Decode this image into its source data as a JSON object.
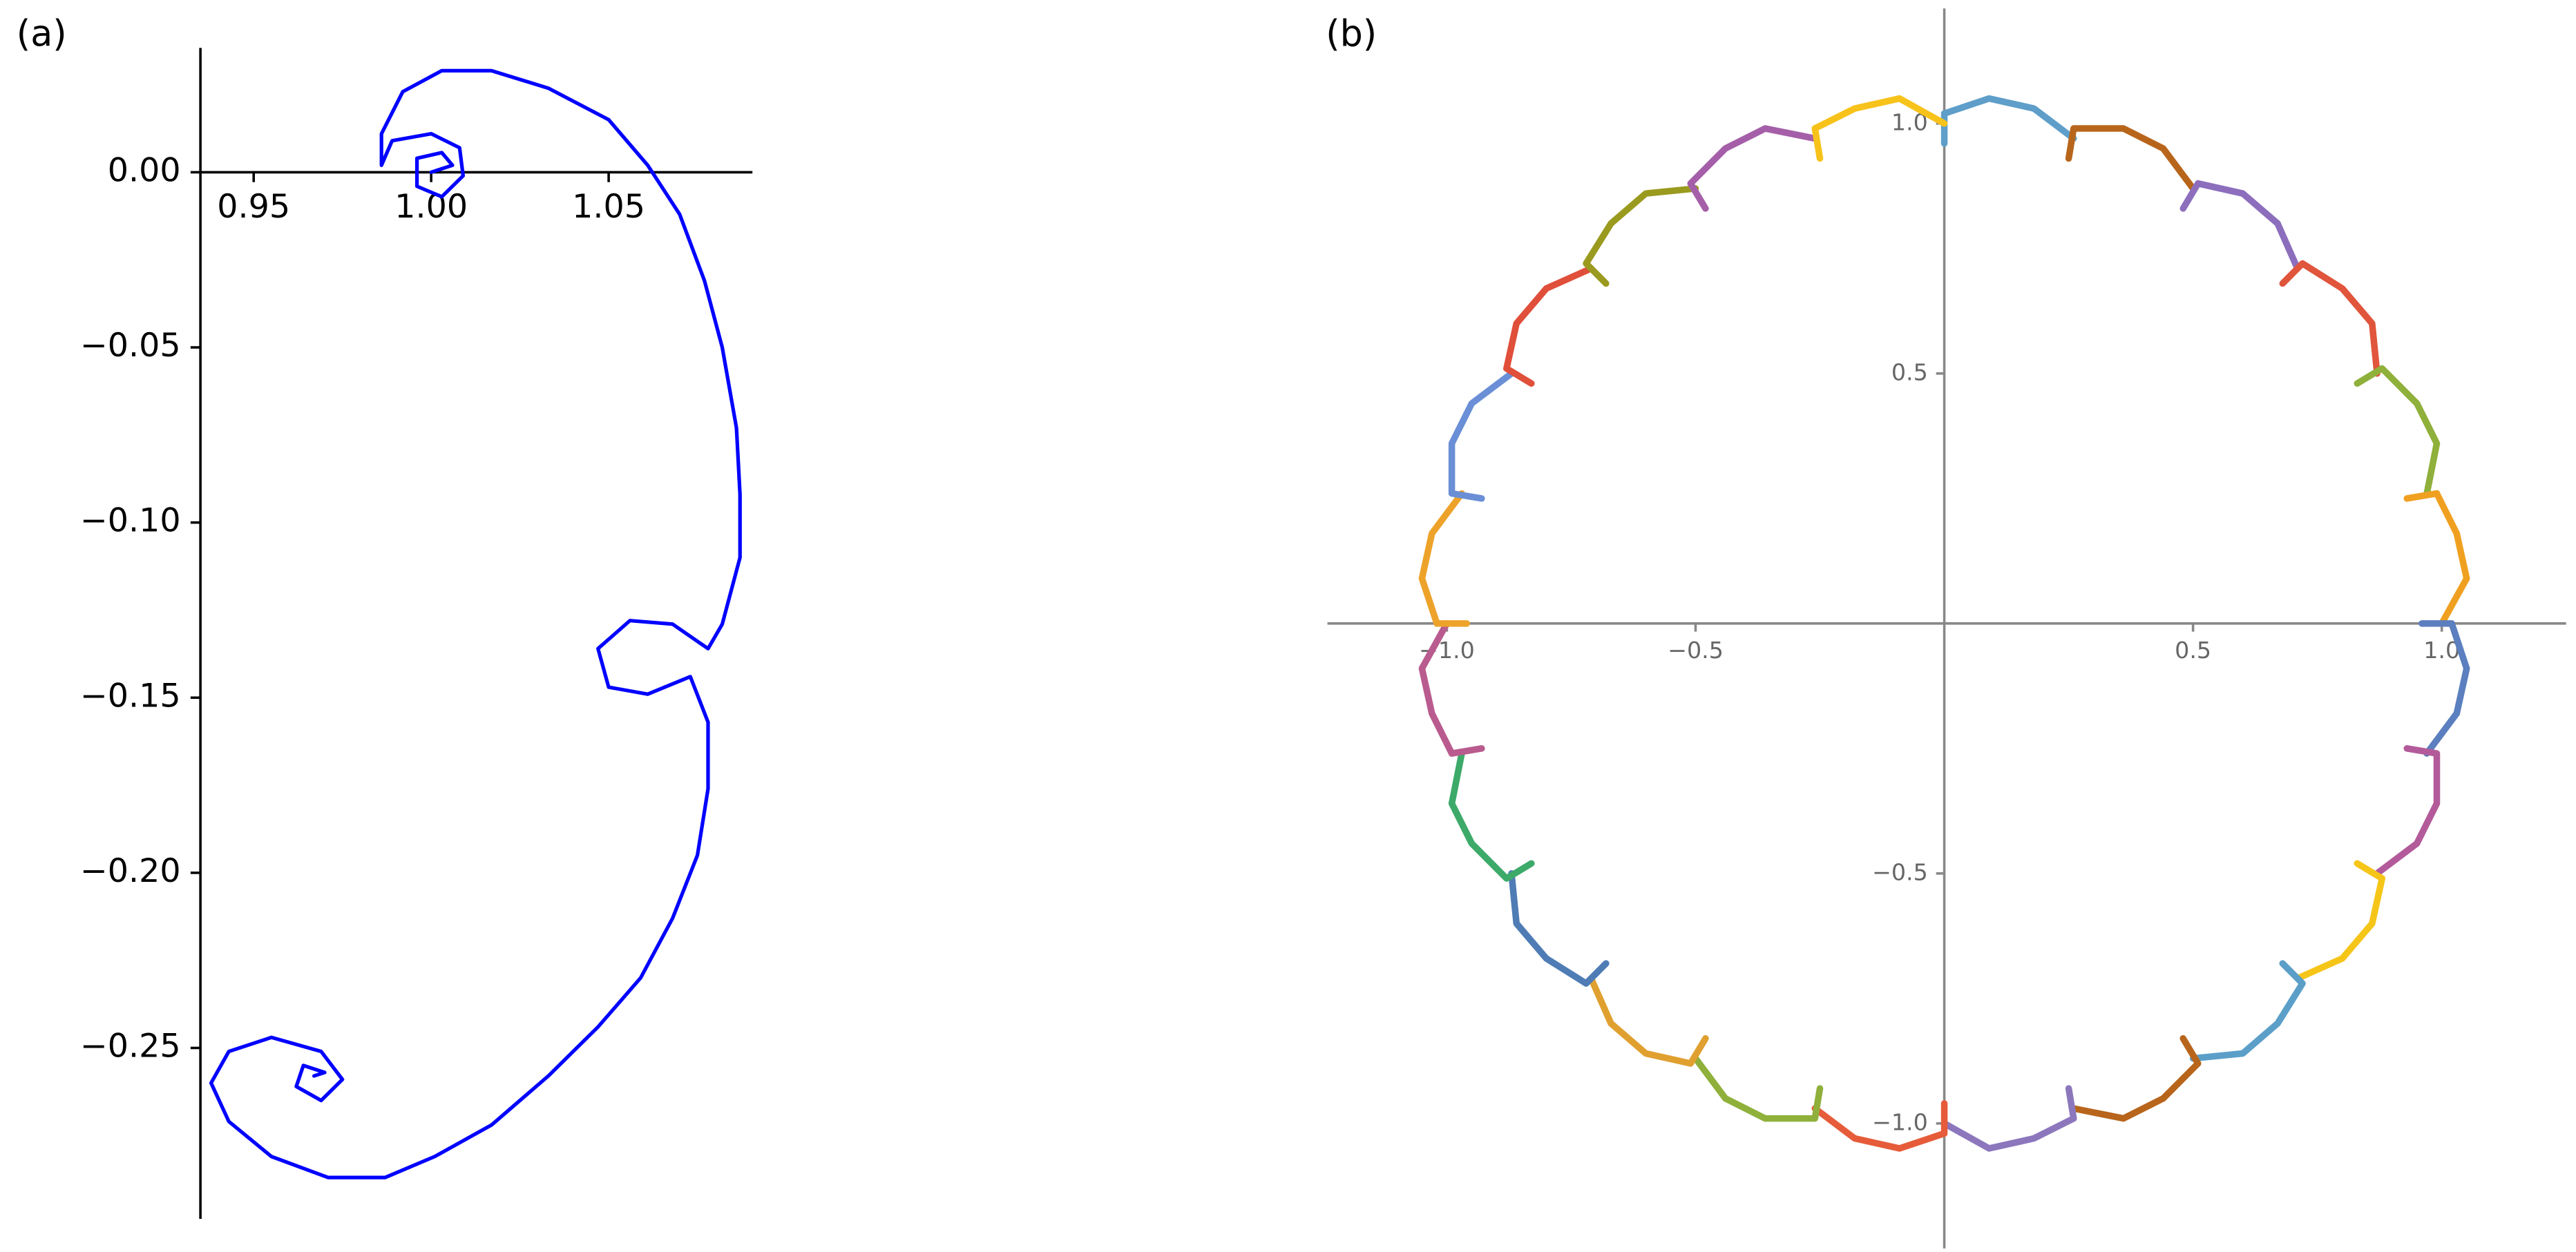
{
  "chart_data": [
    {
      "type": "line",
      "panel_label": "(a)",
      "xlim": [
        0.935,
        1.0905
      ],
      "ylim": [
        -0.2988,
        0.0355
      ],
      "xticks": [
        0.95,
        {
          "value": 1,
          "label": "1.00"
        },
        1.05
      ],
      "yticks": [
        {
          "value": 0,
          "label": "0.00"
        },
        {
          "value": -0.05,
          "label": "−0.05"
        },
        {
          "value": -0.1,
          "label": "−0.10"
        },
        {
          "value": -0.15,
          "label": "−0.15"
        },
        {
          "value": -0.2,
          "label": "−0.20"
        },
        {
          "value": -0.25,
          "label": "−0.25"
        }
      ],
      "series": [
        {
          "color": "#0000ff",
          "x": [
            1.0,
            1.006,
            1.003,
            0.996,
            0.996,
            1.003,
            1.009,
            1.008,
            1.0,
            0.989,
            0.986,
            0.986,
            0.992,
            1.003,
            1.017,
            1.033,
            1.05,
            1.061,
            1.07,
            1.077,
            1.082,
            1.086,
            1.087,
            1.087,
            1.082,
            1.078,
            1.068,
            1.056,
            1.047,
            1.05,
            1.061,
            1.073,
            1.078,
            1.078,
            1.075,
            1.068,
            1.059,
            1.047,
            1.033,
            1.017,
            1.001,
            0.987,
            0.971,
            0.955,
            0.943,
            0.938,
            0.943,
            0.955,
            0.969,
            0.975,
            0.969,
            0.962,
            0.964,
            0.97,
            0.967
          ],
          "values": [
            0.0,
            0.002,
            0.0056,
            0.004,
            -0.004,
            -0.007,
            -0.001,
            0.007,
            0.011,
            0.009,
            0.002,
            0.011,
            0.023,
            0.029,
            0.029,
            0.024,
            0.015,
            0.002,
            -0.012,
            -0.031,
            -0.05,
            -0.073,
            -0.092,
            -0.11,
            -0.129,
            -0.136,
            -0.129,
            -0.128,
            -0.136,
            -0.147,
            -0.149,
            -0.144,
            -0.157,
            -0.176,
            -0.195,
            -0.213,
            -0.23,
            -0.244,
            -0.258,
            -0.272,
            -0.281,
            -0.287,
            -0.287,
            -0.281,
            -0.271,
            -0.26,
            -0.251,
            -0.247,
            -0.251,
            -0.259,
            -0.265,
            -0.261,
            -0.255,
            -0.257,
            -0.258
          ]
        }
      ]
    },
    {
      "type": "line",
      "panel_label": "(b)",
      "xlim": [
        -1.24,
        1.25
      ],
      "ylim": [
        -1.25,
        1.23
      ],
      "xticks": [
        {
          "value": -1,
          "label": "−1.0"
        },
        {
          "value": -0.5,
          "label": "−0.5"
        },
        0.5,
        {
          "value": 1,
          "label": "1.0"
        }
      ],
      "yticks": [
        {
          "value": 1,
          "label": "1.0"
        },
        0.5,
        {
          "value": -0.5,
          "label": "−0.5"
        },
        {
          "value": -1,
          "label": "−1.0"
        }
      ],
      "series": [
        {
          "color": "#5e9ec9",
          "x": [
            0,
            0,
            0.09,
            0.18,
            0.26
          ],
          "values": [
            0.96,
            1.02,
            1.05,
            1.03,
            0.97
          ]
        },
        {
          "color": "#b8651c",
          "x": [
            0.25,
            0.26,
            0.36,
            0.44,
            0.5
          ],
          "values": [
            0.93,
            0.99,
            0.99,
            0.95,
            0.87
          ]
        },
        {
          "color": "#8c6ebd",
          "x": [
            0.48,
            0.51,
            0.6,
            0.67,
            0.71
          ],
          "values": [
            0.83,
            0.88,
            0.86,
            0.8,
            0.71
          ]
        },
        {
          "color": "#e0553b",
          "x": [
            0.68,
            0.72,
            0.8,
            0.86,
            0.87
          ],
          "values": [
            0.68,
            0.72,
            0.67,
            0.6,
            0.5
          ]
        },
        {
          "color": "#8fb03a",
          "x": [
            0.83,
            0.88,
            0.95,
            0.99,
            0.97
          ],
          "values": [
            0.48,
            0.51,
            0.44,
            0.36,
            0.26
          ]
        },
        {
          "color": "#f0a020",
          "x": [
            0.93,
            0.99,
            1.03,
            1.05,
            1
          ],
          "values": [
            0.25,
            0.26,
            0.18,
            0.09,
            0
          ]
        },
        {
          "color": "#5b7fbf",
          "x": [
            0.96,
            1.02,
            1.05,
            1.03,
            0.97
          ],
          "values": [
            0,
            0,
            -0.09,
            -0.18,
            -0.26
          ]
        },
        {
          "color": "#b35a9a",
          "x": [
            0.93,
            0.99,
            0.99,
            0.95,
            0.87
          ],
          "values": [
            -0.25,
            -0.26,
            -0.36,
            -0.44,
            -0.5
          ]
        },
        {
          "color": "#f5c518",
          "x": [
            0.83,
            0.88,
            0.86,
            0.8,
            0.71
          ],
          "values": [
            -0.48,
            -0.51,
            -0.6,
            -0.67,
            -0.71
          ]
        },
        {
          "color": "#5b9fc9",
          "x": [
            0.68,
            0.72,
            0.67,
            0.6,
            0.5
          ],
          "values": [
            -0.68,
            -0.72,
            -0.8,
            -0.86,
            -0.87
          ]
        },
        {
          "color": "#b8651c",
          "x": [
            0.48,
            0.51,
            0.44,
            0.36,
            0.26
          ],
          "values": [
            -0.83,
            -0.88,
            -0.95,
            -0.99,
            -0.97
          ]
        },
        {
          "color": "#8c77bd",
          "x": [
            0.25,
            0.26,
            0.18,
            0.09,
            0
          ],
          "values": [
            -0.93,
            -0.99,
            -1.03,
            -1.05,
            -1
          ]
        },
        {
          "color": "#e65c3a",
          "x": [
            0,
            0,
            -0.09,
            -0.18,
            -0.26
          ],
          "values": [
            -0.96,
            -1.02,
            -1.05,
            -1.03,
            -0.97
          ]
        },
        {
          "color": "#8fb03a",
          "x": [
            -0.25,
            -0.26,
            -0.36,
            -0.44,
            -0.5
          ],
          "values": [
            -0.93,
            -0.99,
            -0.99,
            -0.95,
            -0.87
          ]
        },
        {
          "color": "#e0a030",
          "x": [
            -0.48,
            -0.51,
            -0.6,
            -0.67,
            -0.71
          ],
          "values": [
            -0.83,
            -0.88,
            -0.86,
            -0.8,
            -0.71
          ]
        },
        {
          "color": "#4f7cb5",
          "x": [
            -0.68,
            -0.72,
            -0.8,
            -0.86,
            -0.87
          ],
          "values": [
            -0.68,
            -0.72,
            -0.67,
            -0.6,
            -0.5
          ]
        },
        {
          "color": "#3daa6a",
          "x": [
            -0.83,
            -0.88,
            -0.95,
            -0.99,
            -0.97
          ],
          "values": [
            -0.48,
            -0.51,
            -0.44,
            -0.36,
            -0.26
          ]
        },
        {
          "color": "#b95b8e",
          "x": [
            -0.93,
            -0.99,
            -1.03,
            -1.05,
            -1
          ],
          "values": [
            -0.25,
            -0.26,
            -0.18,
            -0.09,
            0
          ]
        },
        {
          "color": "#eda32a",
          "x": [
            -0.96,
            -1.02,
            -1.05,
            -1.03,
            -0.97
          ],
          "values": [
            0,
            0,
            0.09,
            0.18,
            0.26
          ]
        },
        {
          "color": "#6a8fd6",
          "x": [
            -0.93,
            -0.99,
            -0.99,
            -0.95,
            -0.87
          ],
          "values": [
            0.25,
            0.26,
            0.36,
            0.44,
            0.5
          ]
        },
        {
          "color": "#e04f3a",
          "x": [
            -0.83,
            -0.88,
            -0.86,
            -0.8,
            -0.71
          ],
          "values": [
            0.48,
            0.51,
            0.6,
            0.67,
            0.71
          ]
        },
        {
          "color": "#9a9a1f",
          "x": [
            -0.68,
            -0.72,
            -0.67,
            -0.6,
            -0.5
          ],
          "values": [
            0.68,
            0.72,
            0.8,
            0.86,
            0.87
          ]
        },
        {
          "color": "#a55fa8",
          "x": [
            -0.48,
            -0.51,
            -0.44,
            -0.36,
            -0.26
          ],
          "values": [
            0.83,
            0.88,
            0.95,
            0.99,
            0.97
          ]
        },
        {
          "color": "#f7c21a",
          "x": [
            -0.25,
            -0.26,
            -0.18,
            -0.09,
            0
          ],
          "values": [
            0.93,
            0.99,
            1.03,
            1.05,
            1
          ]
        }
      ]
    }
  ]
}
